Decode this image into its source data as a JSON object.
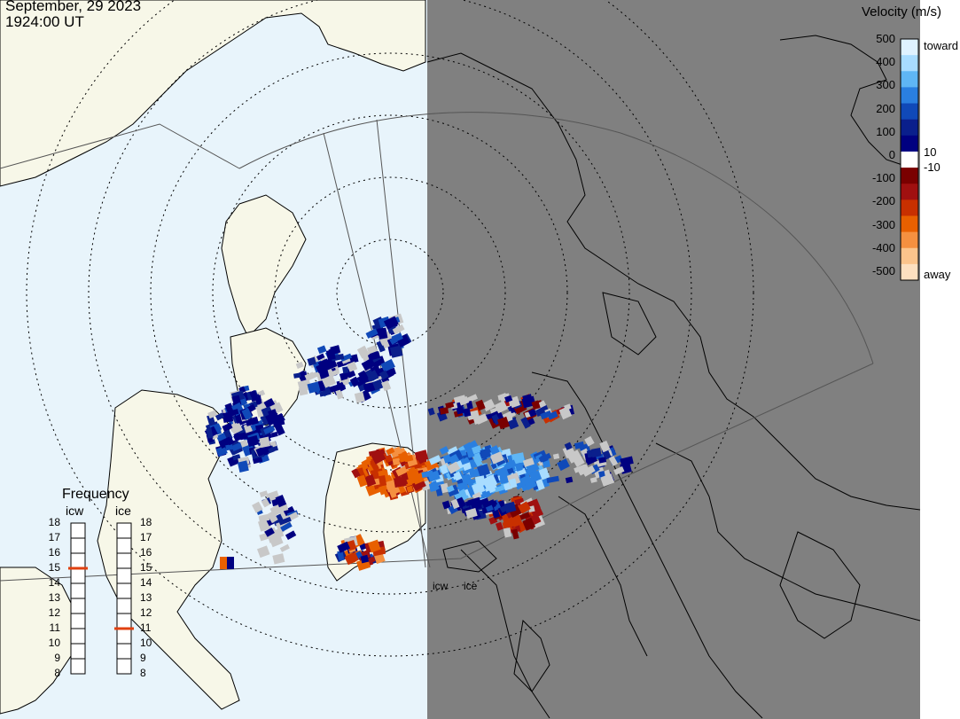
{
  "title": {
    "date": "September, 29 2023",
    "time": "1924:00 UT"
  },
  "colors": {
    "ocean": "#e8f4fb",
    "land": "#f7f7e8",
    "night": "#808080",
    "coast": "#000000",
    "grid": "#000000"
  },
  "colorbar": {
    "title": "Velocity (m/s)",
    "ticks": [
      "500",
      "400",
      "300",
      "200",
      "100",
      "0",
      "-100",
      "-200",
      "-300",
      "-400",
      "-500"
    ],
    "toward_label": "toward",
    "away_label": "away",
    "threshold_pos": "10",
    "threshold_neg": "-10",
    "stops": [
      "#dff2ff",
      "#a8dcff",
      "#5fb6f5",
      "#2a7fe0",
      "#1049b8",
      "#0a1f8c",
      "#000080",
      "#ffffff",
      "#7a0000",
      "#a01010",
      "#c83000",
      "#e86000",
      "#f59040",
      "#fbc48c",
      "#fde0c0"
    ]
  },
  "frequency": {
    "title": "Frequency",
    "radars": [
      {
        "label": "icw",
        "current": 15,
        "ticks": [
          "18",
          "17",
          "16",
          "15",
          "14",
          "13",
          "12",
          "11",
          "10",
          "9",
          "8"
        ]
      },
      {
        "label": "ice",
        "current": 11,
        "ticks": [
          "18",
          "17",
          "16",
          "15",
          "14",
          "13",
          "12",
          "11",
          "10",
          "9",
          "8"
        ]
      }
    ],
    "marker_color": "#e04010"
  },
  "radar_labels": [
    "icw",
    "ice"
  ]
}
